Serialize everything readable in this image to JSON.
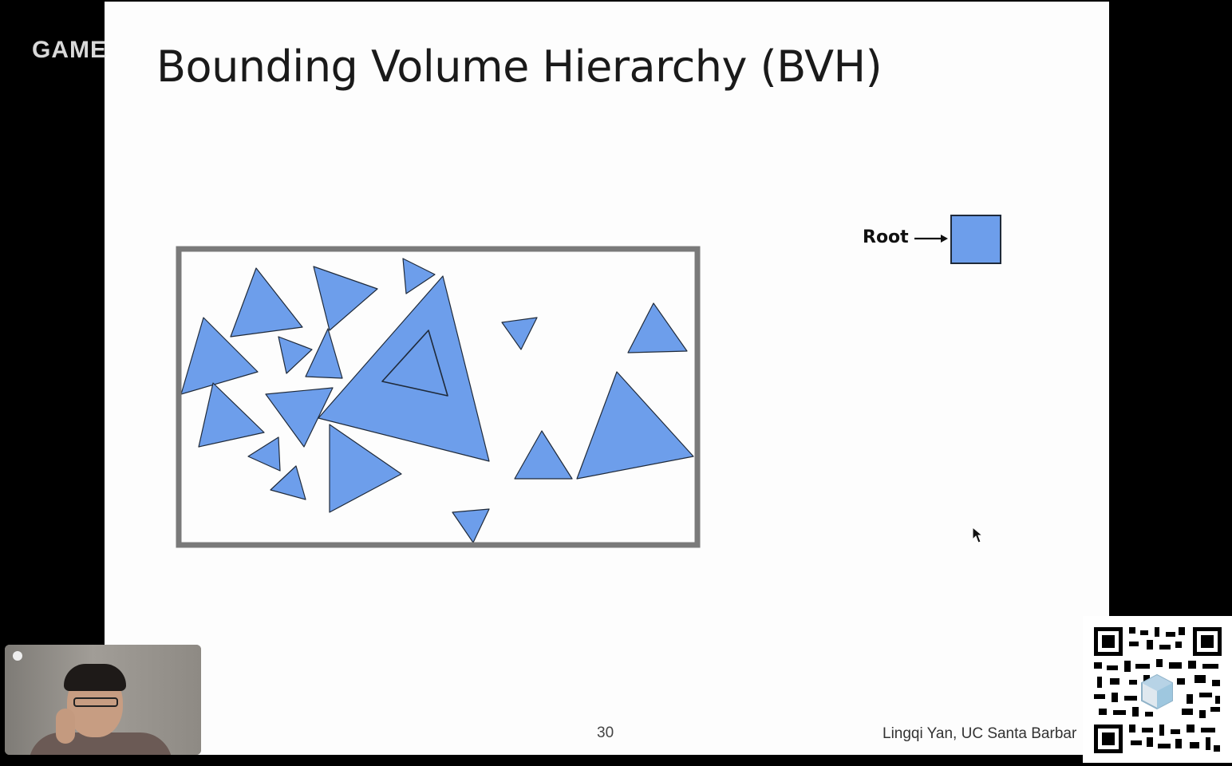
{
  "watermark": {
    "text": "GAME"
  },
  "slide": {
    "title": "Bounding Volume Hierarchy (BVH)",
    "tree": {
      "root_label": "Root"
    },
    "page_number": "30",
    "footer_author": "Lingqi Yan, UC Santa Barbar"
  },
  "colors": {
    "triangle_fill": "#6d9eeb",
    "bounding_box_stroke": "#7a7a7a",
    "slide_bg": "#fdfdfd"
  },
  "icons": {
    "cursor": "mouse-pointer-icon",
    "qr": "qr-code-icon",
    "arrow": "arrow-right-icon"
  }
}
